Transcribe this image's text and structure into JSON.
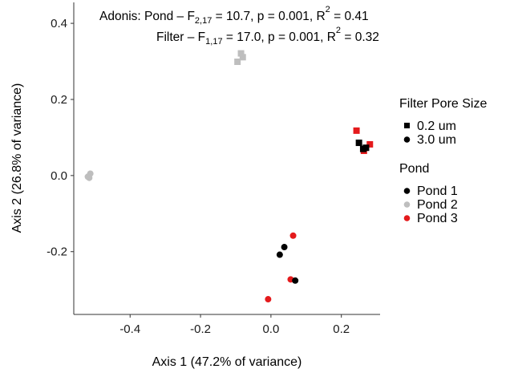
{
  "chart_data": {
    "type": "scatter",
    "xlabel": "Axis 1 (47.2% of variance)",
    "ylabel": "Axis 2 (26.8% of variance)",
    "xlim": [
      -0.56,
      0.31
    ],
    "ylim": [
      -0.365,
      0.455
    ],
    "x_ticks": [
      -0.4,
      -0.2,
      0.0,
      0.2
    ],
    "x_tick_labels": [
      "-0.4",
      "-0.2",
      "0.0",
      "0.2"
    ],
    "y_ticks": [
      -0.2,
      0.0,
      0.2,
      0.4
    ],
    "y_tick_labels": [
      "-0.2",
      "0.0",
      "0.2",
      "0.4"
    ],
    "grid": false,
    "legend_position": "right",
    "annotation": {
      "line1": {
        "prefix": "Adonis: Pond – F",
        "sub": "2,17",
        "rest": " = 10.7, p = 0.001, R",
        "sup": "2",
        "end": " = 0.41"
      },
      "line2": {
        "prefix": "Filter – F",
        "sub": "1,17",
        "rest": " = 17.0, p = 0.001, R",
        "sup": "2",
        "end": " = 0.32"
      }
    },
    "legend": {
      "shape_title": "Filter Pore Size",
      "shapes": [
        {
          "label": "0.2 um",
          "shape": "square"
        },
        {
          "label": "3.0 um",
          "shape": "circle"
        }
      ],
      "color_title": "Pond",
      "colors": [
        {
          "label": "Pond 1",
          "color": "#000000"
        },
        {
          "label": "Pond 2",
          "color": "#bebebe"
        },
        {
          "label": "Pond 3",
          "color": "#e41a1c"
        }
      ]
    },
    "points": [
      {
        "x": -0.085,
        "y": 0.321,
        "pond": "Pond 2",
        "filter": "0.2 um"
      },
      {
        "x": -0.08,
        "y": 0.311,
        "pond": "Pond 2",
        "filter": "0.2 um"
      },
      {
        "x": -0.095,
        "y": 0.299,
        "pond": "Pond 2",
        "filter": "0.2 um"
      },
      {
        "x": -0.513,
        "y": 0.005,
        "pond": "Pond 2",
        "filter": "3.0 um"
      },
      {
        "x": -0.52,
        "y": -0.003,
        "pond": "Pond 2",
        "filter": "3.0 um"
      },
      {
        "x": -0.516,
        "y": -0.006,
        "pond": "Pond 2",
        "filter": "3.0 um"
      },
      {
        "x": 0.243,
        "y": 0.118,
        "pond": "Pond 3",
        "filter": "0.2 um"
      },
      {
        "x": 0.281,
        "y": 0.082,
        "pond": "Pond 3",
        "filter": "0.2 um"
      },
      {
        "x": 0.264,
        "y": 0.065,
        "pond": "Pond 3",
        "filter": "0.2 um"
      },
      {
        "x": 0.25,
        "y": 0.086,
        "pond": "Pond 1",
        "filter": "0.2 um"
      },
      {
        "x": 0.27,
        "y": 0.073,
        "pond": "Pond 1",
        "filter": "0.2 um"
      },
      {
        "x": 0.262,
        "y": 0.07,
        "pond": "Pond 1",
        "filter": "0.2 um"
      },
      {
        "x": 0.063,
        "y": -0.158,
        "pond": "Pond 3",
        "filter": "3.0 um"
      },
      {
        "x": 0.056,
        "y": -0.273,
        "pond": "Pond 3",
        "filter": "3.0 um"
      },
      {
        "x": -0.008,
        "y": -0.325,
        "pond": "Pond 3",
        "filter": "3.0 um"
      },
      {
        "x": 0.038,
        "y": -0.188,
        "pond": "Pond 1",
        "filter": "3.0 um"
      },
      {
        "x": 0.025,
        "y": -0.208,
        "pond": "Pond 1",
        "filter": "3.0 um"
      },
      {
        "x": 0.069,
        "y": -0.276,
        "pond": "Pond 1",
        "filter": "3.0 um"
      }
    ]
  }
}
